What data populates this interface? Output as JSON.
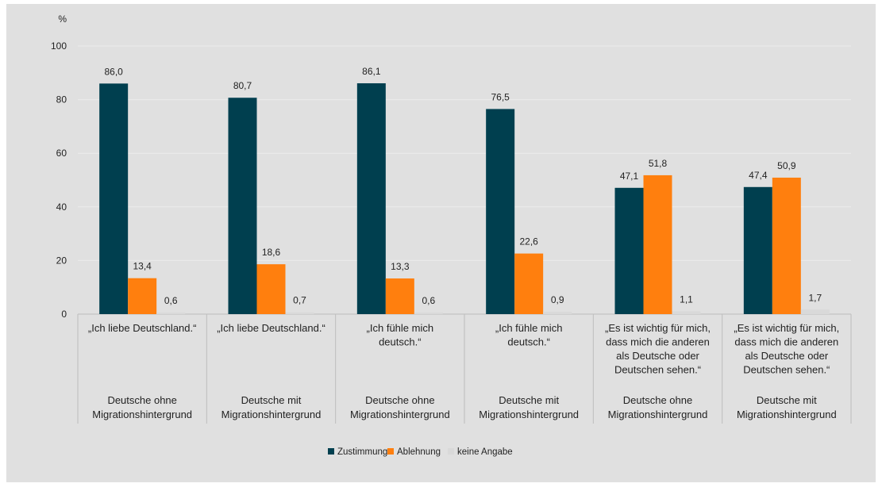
{
  "chart_data": {
    "type": "bar",
    "y_unit": "%",
    "ylim": [
      0,
      100
    ],
    "yticks": [
      0,
      20,
      40,
      60,
      80,
      100
    ],
    "grid": true,
    "legend_position": "bottom-center",
    "groups": [
      {
        "statement": [
          "„Ich liebe Deutschland.“"
        ],
        "population": [
          "Deutsche ohne",
          "Migrationshintergrund"
        ]
      },
      {
        "statement": [
          "„Ich liebe Deutschland.“"
        ],
        "population": [
          "Deutsche mit",
          "Migrationshintergrund"
        ]
      },
      {
        "statement": [
          "„Ich fühle mich",
          "deutsch.“"
        ],
        "population": [
          "Deutsche ohne",
          "Migrationshintergrund"
        ]
      },
      {
        "statement": [
          "„Ich fühle mich",
          "deutsch.“"
        ],
        "population": [
          "Deutsche mit",
          "Migrationshintergrund"
        ]
      },
      {
        "statement": [
          "„Es ist wichtig für mich,",
          "dass mich die anderen",
          "als Deutsche oder",
          "Deutschen sehen.“"
        ],
        "population": [
          "Deutsche ohne",
          "Migrationshintergrund"
        ]
      },
      {
        "statement": [
          "„Es ist wichtig für mich,",
          "dass mich die anderen",
          "als Deutsche oder",
          "Deutschen sehen.“"
        ],
        "population": [
          "Deutsche mit",
          "Migrationshintergrund"
        ]
      }
    ],
    "series": [
      {
        "name": "Zustimmung",
        "color": "#003f4f",
        "values": [
          86.0,
          80.7,
          86.1,
          76.5,
          47.1,
          47.4
        ],
        "labels": [
          "86,0",
          "80,7",
          "86,1",
          "76,5",
          "47,1",
          "47,4"
        ]
      },
      {
        "name": "Ablehnung",
        "color": "#ff7f0e",
        "values": [
          13.4,
          18.6,
          13.3,
          22.6,
          51.8,
          50.9
        ],
        "labels": [
          "13,4",
          "18,6",
          "13,3",
          "22,6",
          "51,8",
          "50,9"
        ]
      },
      {
        "name": "keine Angabe",
        "color": "#d9d9d9",
        "values": [
          0.6,
          0.7,
          0.6,
          0.9,
          1.1,
          1.7
        ],
        "labels": [
          "0,6",
          "0,7",
          "0,6",
          "0,9",
          "1,1",
          "1,7"
        ]
      }
    ]
  },
  "colors": {
    "background": "#e0e0e0",
    "gridline": "#ececec",
    "text": "#222222"
  }
}
